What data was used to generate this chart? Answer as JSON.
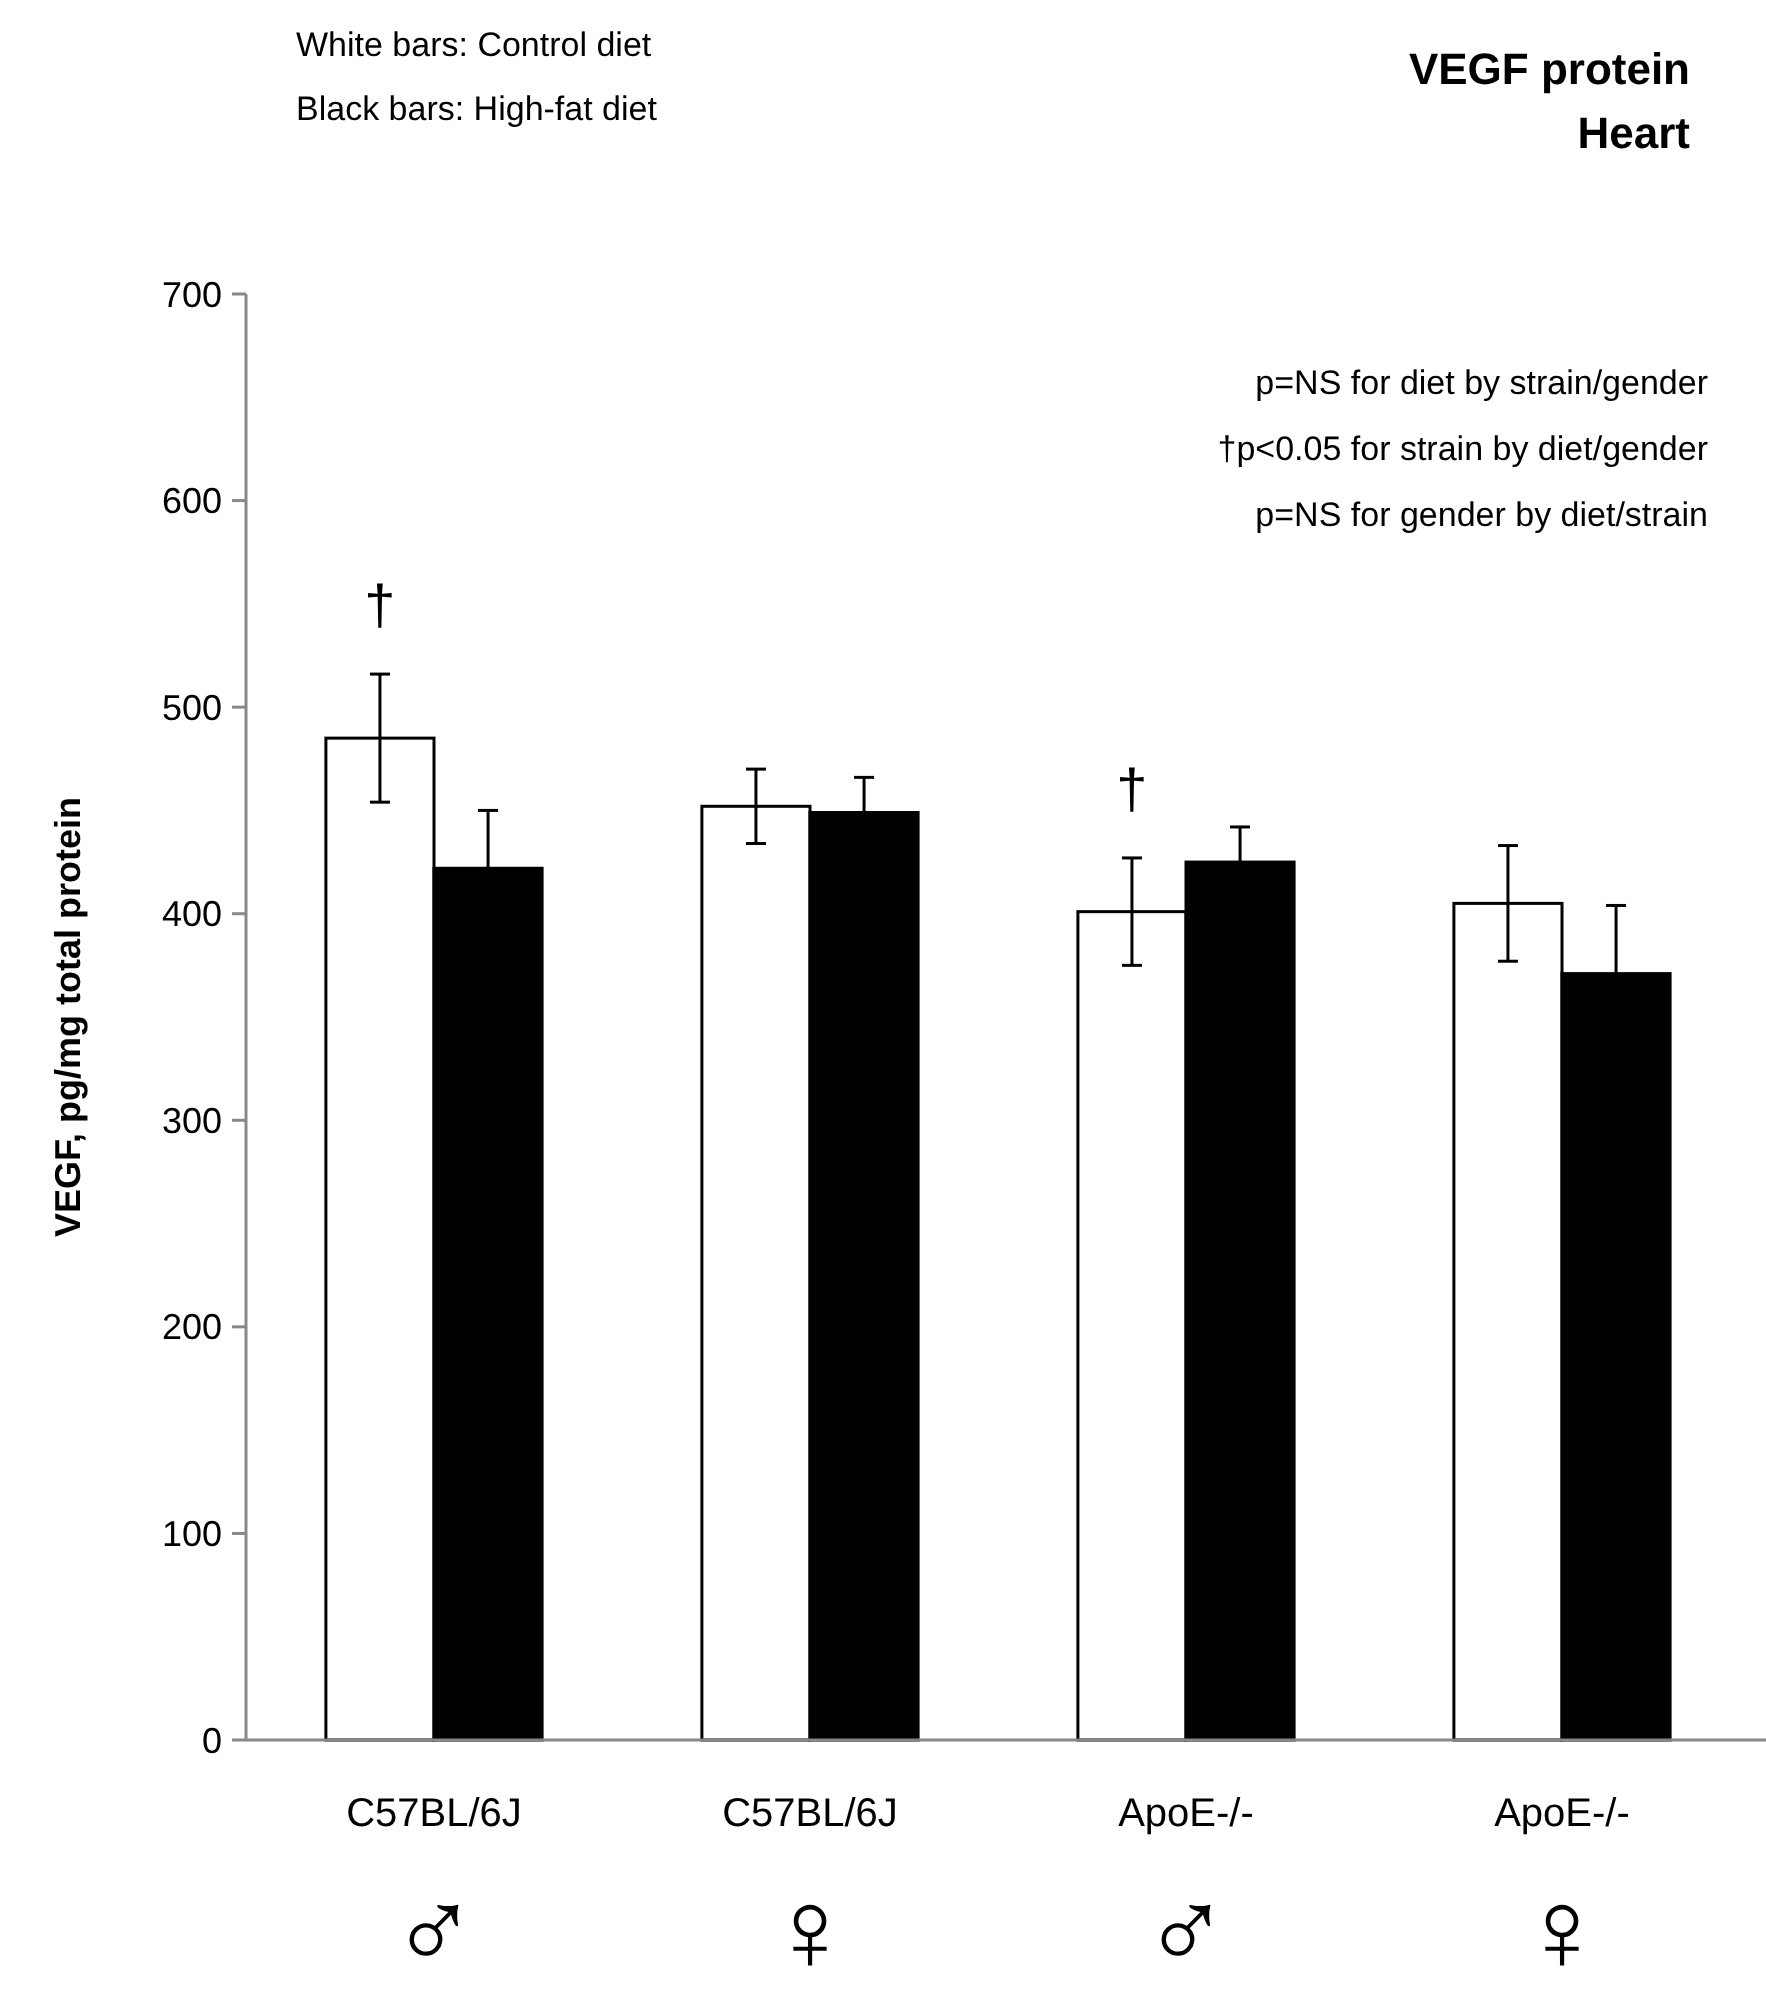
{
  "chart_data": {
    "type": "bar",
    "title": "VEGF protein",
    "subtitle": "Heart",
    "ylabel": "VEGF, pg/mg total protein",
    "categories": [
      "C57BL/6J\n♂",
      "C57BL/6J\n♀",
      "ApoE-/-\n♂",
      "ApoE-/-\n♀"
    ],
    "series": [
      {
        "color": "#ffffff",
        "values": [
          485,
          452,
          401,
          405
        ],
        "errors": [
          31,
          18,
          26,
          28
        ]
      },
      {
        "color": "#000000",
        "values": [
          422,
          449,
          425,
          371
        ],
        "errors": [
          28,
          17,
          17,
          33
        ]
      }
    ],
    "ylim": [
      0,
      700
    ],
    "yticks": [
      0,
      100,
      200,
      300,
      400,
      500,
      600,
      700
    ],
    "grid": false,
    "annotations": [
      "White bars: Control diet",
      "Black bars: High-fat diet",
      "p=NS for diet by strain/gender",
      "†p<0.05 for strain by diet/gender",
      "p=NS for gender by diet/strain",
      "†",
      "†"
    ]
  }
}
